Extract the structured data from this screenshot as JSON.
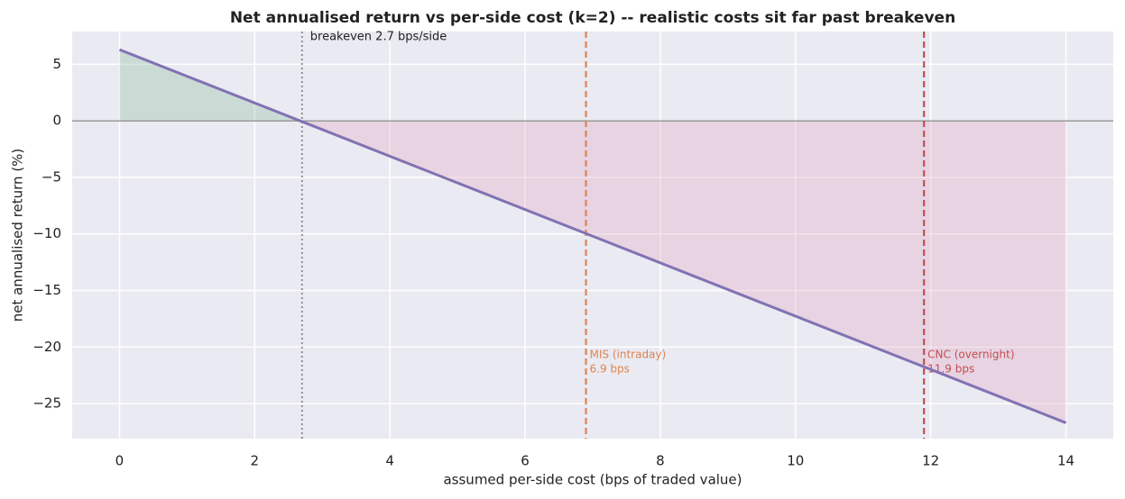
{
  "chart_data": {
    "type": "line",
    "title": "Net annualised return vs per-side cost (k=2) -- realistic costs sit far past breakeven",
    "xlabel": "assumed per-side cost (bps of traded value)",
    "ylabel": "net annualised return (%)",
    "x": [
      0,
      14
    ],
    "series": [
      {
        "name": "net return",
        "color": "#8172b3",
        "values": [
          6.3,
          -26.7
        ]
      }
    ],
    "xlim": [
      -0.7,
      14.7
    ],
    "ylim": [
      -28.1,
      7.9
    ],
    "xticks": [
      0,
      2,
      4,
      6,
      8,
      10,
      12,
      14
    ],
    "yticks": [
      5,
      0,
      {
        "value": -5,
        "label": "−5"
      },
      {
        "value": -10,
        "label": "−10"
      },
      {
        "value": -15,
        "label": "−15"
      },
      {
        "value": -20,
        "label": "−20"
      },
      {
        "value": -25,
        "label": "−25"
      }
    ],
    "grid": true,
    "fill_colors": {
      "positive": "#8fc0a0",
      "negative": "#e0a0b8"
    },
    "vlines": [
      {
        "x": 2.7,
        "color": "#888888",
        "style": "dotted",
        "label": [
          "breakeven 2.7 bps/side"
        ]
      },
      {
        "x": 6.9,
        "color": "#dd8452",
        "style": "dashed",
        "label": [
          "MIS (intraday)",
          "6.9 bps"
        ]
      },
      {
        "x": 11.9,
        "color": "#c44e52",
        "style": "dashed",
        "label": [
          "CNC (overnight)",
          "11.9 bps"
        ]
      }
    ]
  }
}
